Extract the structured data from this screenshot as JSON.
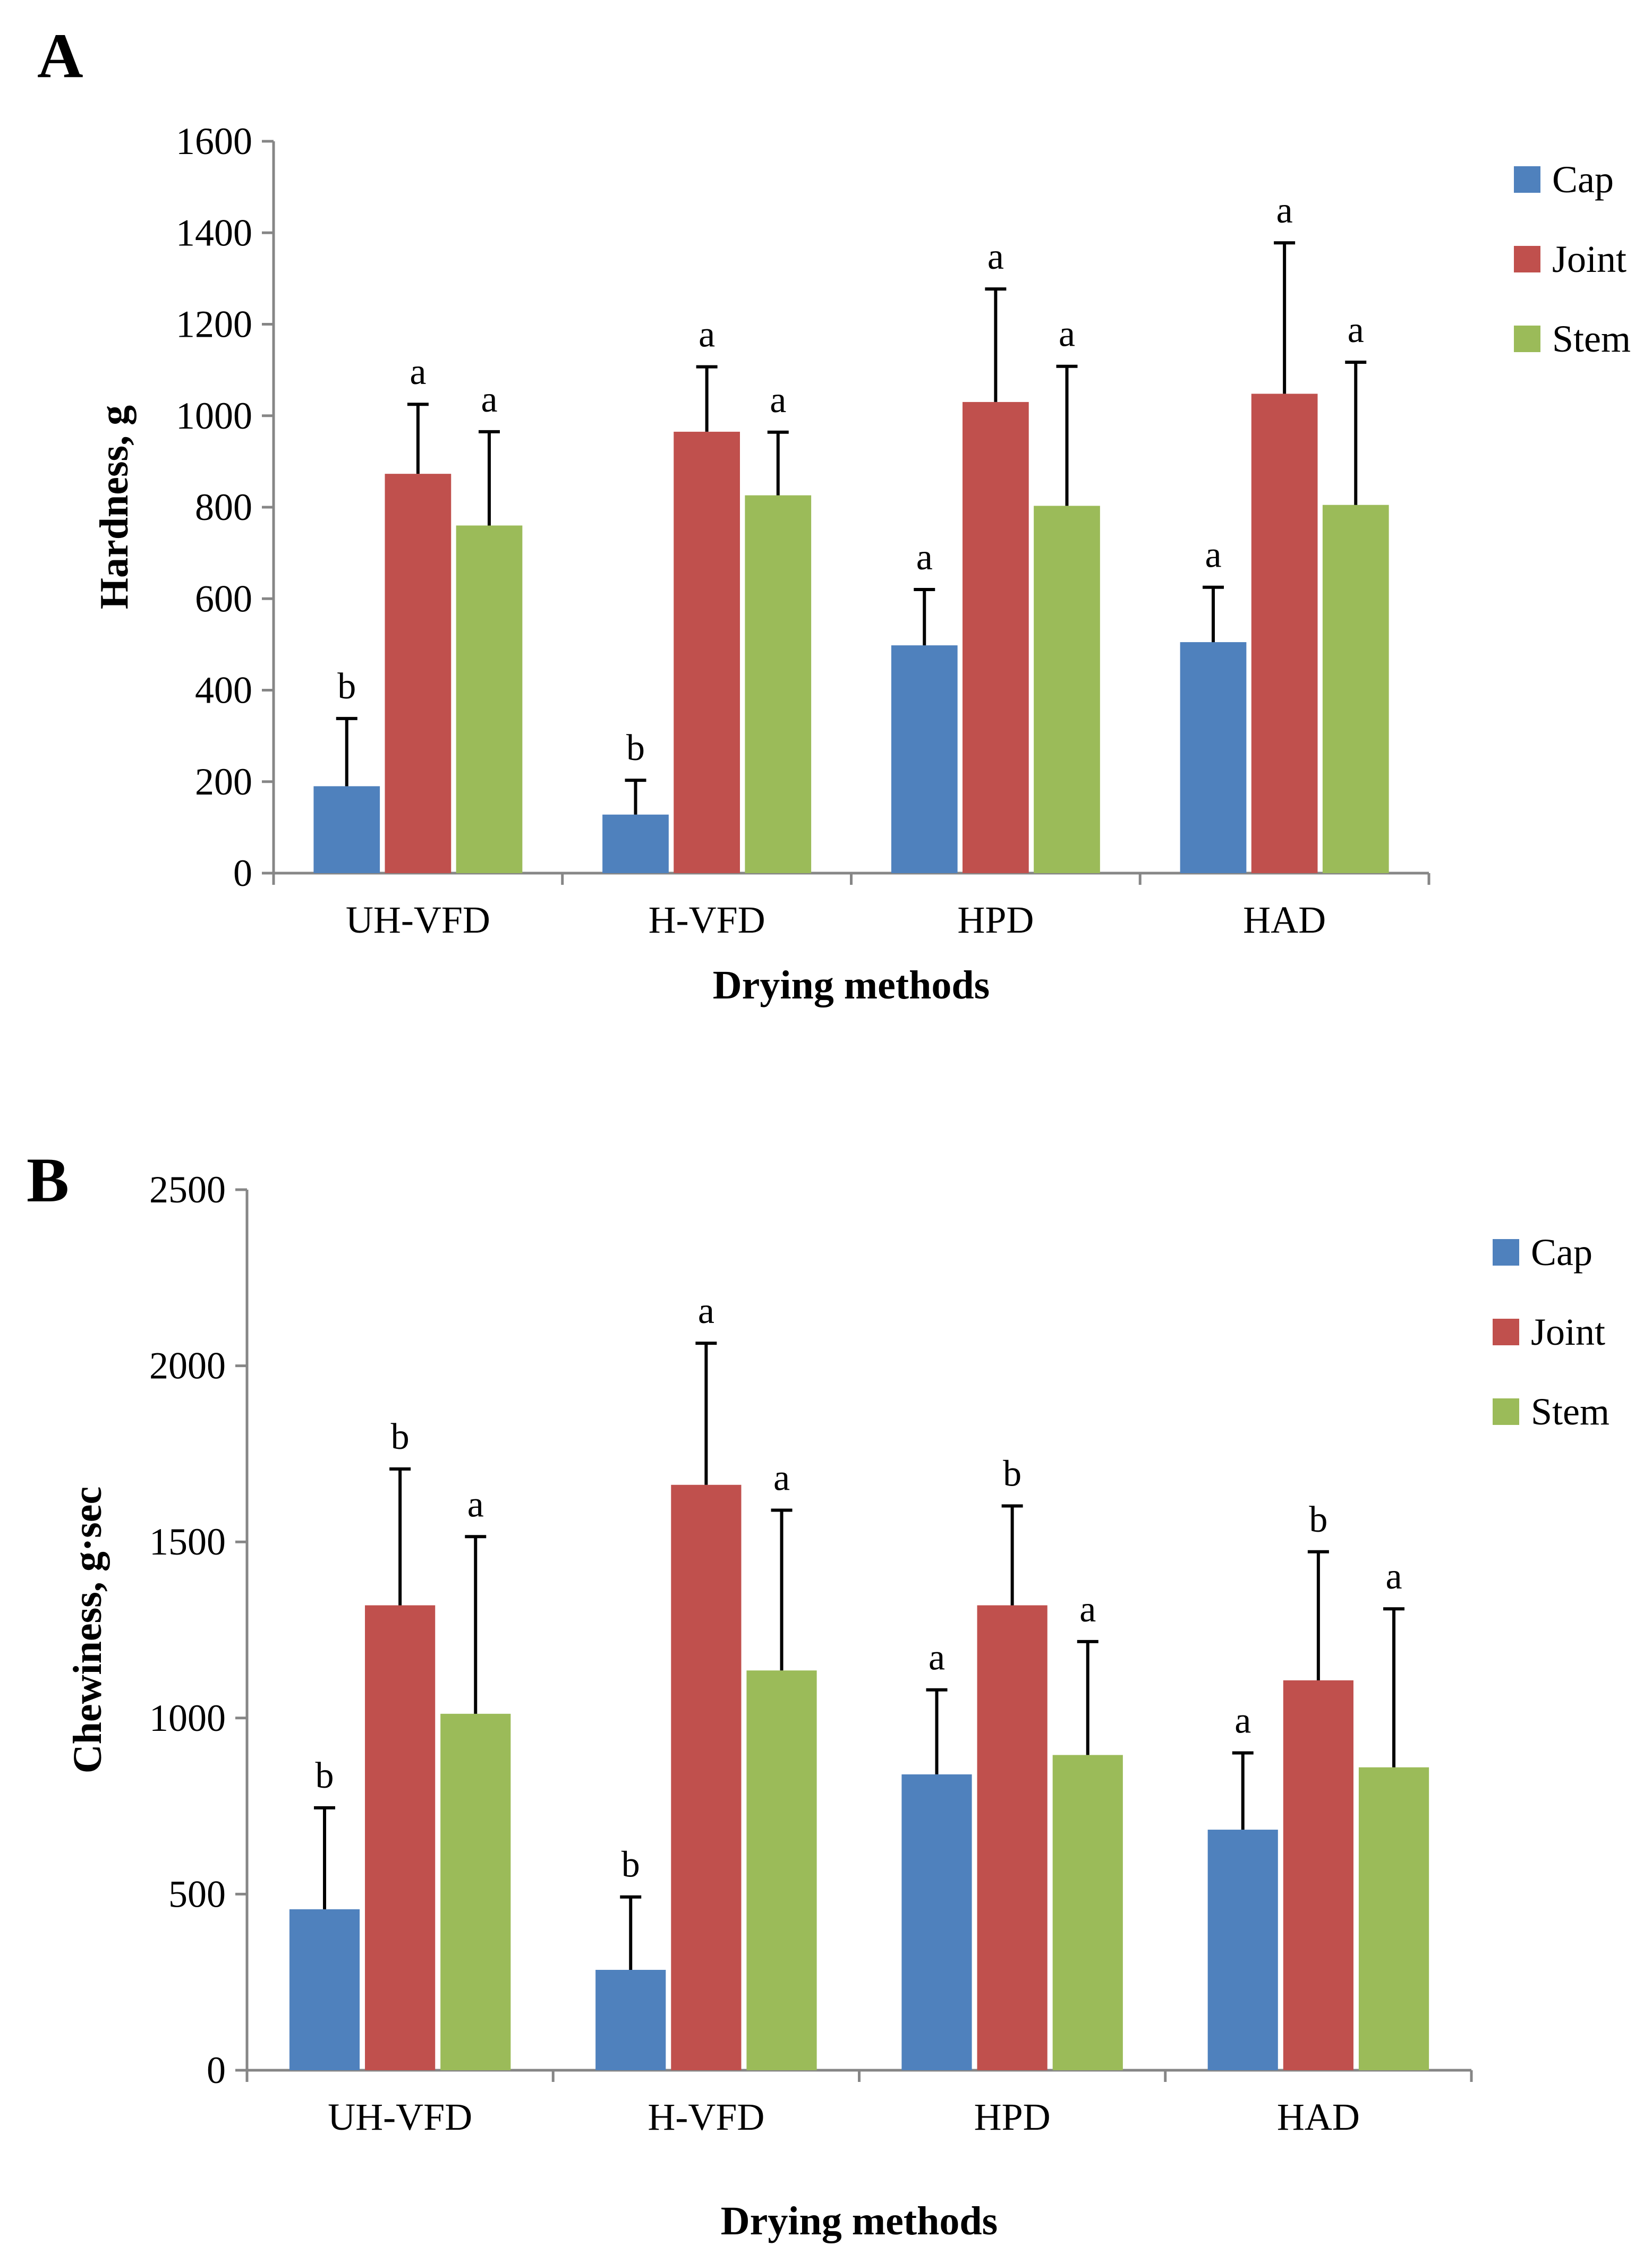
{
  "chart_data": [
    {
      "type": "bar",
      "panel": "A",
      "title": "",
      "xlabel": "Drying methods",
      "ylabel": "Hardness, g",
      "ylim": [
        0,
        1600
      ],
      "yticks": [
        0,
        200,
        400,
        600,
        800,
        1000,
        1200,
        1400,
        1600
      ],
      "categories": [
        "UH-VFD",
        "H-VFD",
        "HPD",
        "HAD"
      ],
      "legend_position": "top-right",
      "series": [
        {
          "name": "Cap",
          "color": "#4F81BD",
          "values": [
            190,
            128,
            498,
            505
          ],
          "errors": [
            148,
            75,
            122,
            120
          ],
          "significance": [
            "b",
            "b",
            "a",
            "a"
          ]
        },
        {
          "name": "Joint",
          "color": "#C0504D",
          "values": [
            873,
            965,
            1030,
            1048
          ],
          "errors": [
            152,
            142,
            247,
            330
          ],
          "significance": [
            "a",
            "a",
            "a",
            "a"
          ]
        },
        {
          "name": "Stem",
          "color": "#9BBB59",
          "values": [
            760,
            826,
            803,
            805
          ],
          "errors": [
            205,
            138,
            305,
            312
          ],
          "significance": [
            "a",
            "a",
            "a",
            "a"
          ]
        }
      ]
    },
    {
      "type": "bar",
      "panel": "B",
      "title": "",
      "xlabel": "Drying methods",
      "ylabel": "Chewiness, g·sec",
      "ylim": [
        0,
        2500
      ],
      "yticks": [
        0,
        500,
        1000,
        1500,
        2000,
        2500
      ],
      "categories": [
        "UH-VFD",
        "H-VFD",
        "HPD",
        "HAD"
      ],
      "legend_position": "top-right",
      "series": [
        {
          "name": "Cap",
          "color": "#4F81BD",
          "values": [
            457,
            285,
            840,
            683
          ],
          "errors": [
            288,
            207,
            240,
            218
          ],
          "significance": [
            "b",
            "b",
            "a",
            "a"
          ]
        },
        {
          "name": "Joint",
          "color": "#C0504D",
          "values": [
            1320,
            1662,
            1320,
            1107
          ],
          "errors": [
            387,
            402,
            282,
            365
          ],
          "significance": [
            "b",
            "a",
            "b",
            "b"
          ]
        },
        {
          "name": "Stem",
          "color": "#9BBB59",
          "values": [
            1012,
            1135,
            895,
            860
          ],
          "errors": [
            503,
            455,
            322,
            450
          ],
          "significance": [
            "a",
            "a",
            "a",
            "a"
          ]
        }
      ]
    }
  ],
  "panels": {
    "a": {
      "letter": "A"
    },
    "b": {
      "letter": "B"
    }
  }
}
